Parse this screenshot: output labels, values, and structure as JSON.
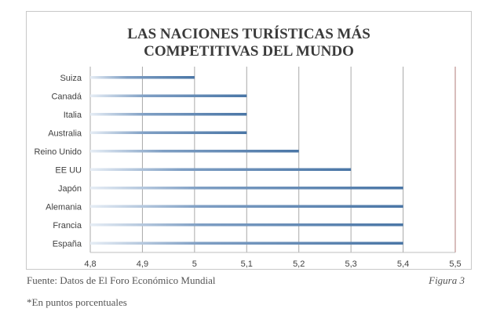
{
  "chart_data": {
    "type": "bar",
    "orientation": "horizontal",
    "title_lines": [
      "LAS NACIONES TURÍSTICAS MÁS",
      "COMPETITIVAS DEL MUNDO"
    ],
    "categories": [
      "Suiza",
      "Canadá",
      "Italia",
      "Australia",
      "Reino Unido",
      "EE UU",
      "Japón",
      "Alemania",
      "Francia",
      "España"
    ],
    "values": [
      5.0,
      5.1,
      5.1,
      5.1,
      5.2,
      5.3,
      5.4,
      5.4,
      5.4,
      5.4
    ],
    "xlim": [
      4.8,
      5.5
    ],
    "xticks": [
      "4,8",
      "4,9",
      "5",
      "5,1",
      "5,2",
      "5,3",
      "5,4",
      "5,5"
    ],
    "grid": true,
    "bar_color": "#4a76a6",
    "grid_color": "#a9a9a9",
    "limit_line_color": "#b07b78"
  },
  "source": "Fuente: Datos de El Foro Económico Mundial",
  "figure_label": "Figura 3",
  "footnote": "*En puntos porcentuales"
}
